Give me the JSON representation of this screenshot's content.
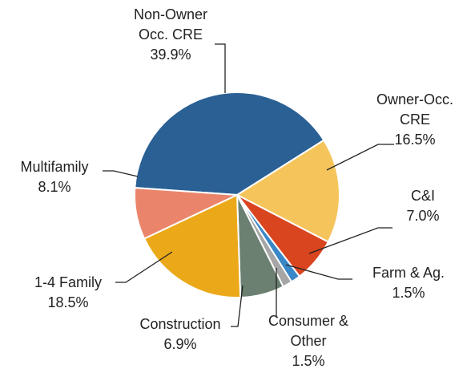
{
  "chart_data": {
    "type": "pie",
    "categories": [
      "Non-Owner Occ. CRE",
      "Owner-Occ. CRE",
      "C&I",
      "Farm & Ag.",
      "Consumer & Other",
      "Construction",
      "1-4 Family",
      "Multifamily"
    ],
    "values": [
      39.9,
      16.5,
      7.0,
      1.5,
      1.5,
      6.9,
      18.5,
      8.1
    ],
    "value_labels": [
      "39.9%",
      "16.5%",
      "7.0%",
      "1.5%",
      "1.5%",
      "6.9%",
      "18.5%",
      "8.1%"
    ],
    "colors": [
      "#2a6094",
      "#f5c55c",
      "#d9451f",
      "#3a87c8",
      "#a6a6a6",
      "#6b8070",
      "#eba919",
      "#ea856b"
    ]
  }
}
